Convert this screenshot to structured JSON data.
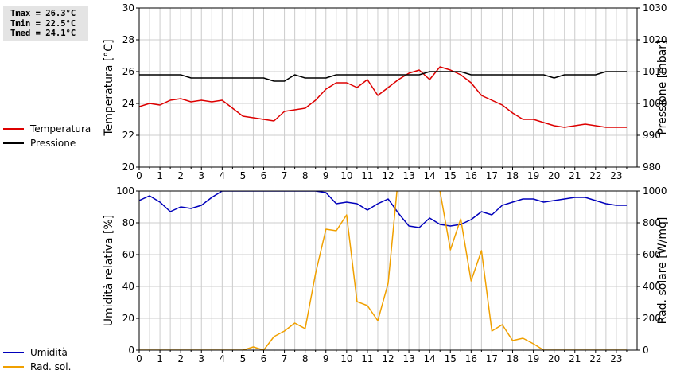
{
  "stats": {
    "tmax": "Tmax = 26.3°C",
    "tmin": "Tmin = 22.5°C",
    "tmed": "Tmed = 24.1°C"
  },
  "colors": {
    "temperature": "#dd0000",
    "pressure": "#000000",
    "humidity": "#0000bb",
    "radiation": "#f0a000",
    "grid": "#cccccc"
  },
  "chart_data": [
    {
      "type": "line",
      "grid": true,
      "legend_position": "left",
      "xlim": [
        0,
        24
      ],
      "x_ticks": [
        "0",
        "1",
        "2",
        "3",
        "4",
        "5",
        "6",
        "7",
        "8",
        "9",
        "10",
        "11",
        "12",
        "13",
        "14",
        "15",
        "16",
        "17",
        "18",
        "19",
        "20",
        "21",
        "22",
        "23"
      ],
      "ylabel": "Temperatura [°C]",
      "ylim": [
        20,
        30
      ],
      "y_ticks": [
        "20",
        "22",
        "24",
        "26",
        "28",
        "30"
      ],
      "y2label": "Pressione [mbar]",
      "y2lim": [
        980,
        1030
      ],
      "y2_ticks": [
        "980",
        "990",
        "1000",
        "1010",
        "1020",
        "1030"
      ],
      "series": [
        {
          "name": "Temperatura",
          "axis": "left",
          "x": [
            0,
            0.5,
            1,
            1.5,
            2,
            2.5,
            3,
            3.5,
            4,
            4.5,
            5,
            5.5,
            6,
            6.5,
            7,
            7.5,
            8,
            8.5,
            9,
            9.5,
            10,
            10.5,
            11,
            11.5,
            12,
            12.5,
            13,
            13.5,
            14,
            14.5,
            15,
            15.5,
            16,
            16.5,
            17,
            17.5,
            18,
            18.5,
            19,
            19.5,
            20,
            20.5,
            21,
            21.5,
            22,
            22.5,
            23,
            23.5
          ],
          "values": [
            23.8,
            24.0,
            23.9,
            24.2,
            24.3,
            24.1,
            24.2,
            24.1,
            24.2,
            23.7,
            23.2,
            23.1,
            23.0,
            22.9,
            23.5,
            23.6,
            23.7,
            24.2,
            24.9,
            25.3,
            25.3,
            25.0,
            25.5,
            24.5,
            25.0,
            25.5,
            25.9,
            26.1,
            25.5,
            26.3,
            26.1,
            25.8,
            25.3,
            24.5,
            24.2,
            23.9,
            23.4,
            23.0,
            23.0,
            22.8,
            22.6,
            22.5,
            22.6,
            22.7,
            22.6,
            22.5,
            22.5,
            22.5
          ]
        },
        {
          "name": "Pressione",
          "axis": "right",
          "x": [
            0,
            0.5,
            1,
            1.5,
            2,
            2.5,
            3,
            3.5,
            4,
            4.5,
            5,
            5.5,
            6,
            6.5,
            7,
            7.5,
            8,
            8.5,
            9,
            9.5,
            10,
            10.5,
            11,
            11.5,
            12,
            12.5,
            13,
            13.5,
            14,
            14.5,
            15,
            15.5,
            16,
            16.5,
            17,
            17.5,
            18,
            18.5,
            19,
            19.5,
            20,
            20.5,
            21,
            21.5,
            22,
            22.5,
            23,
            23.5
          ],
          "values": [
            1009,
            1009,
            1009,
            1009,
            1009,
            1008,
            1008,
            1008,
            1008,
            1008,
            1008,
            1008,
            1008,
            1007,
            1007,
            1009,
            1008,
            1008,
            1008,
            1009,
            1009,
            1009,
            1009,
            1009,
            1009,
            1009,
            1009,
            1009,
            1010,
            1010,
            1010,
            1010,
            1009,
            1009,
            1009,
            1009,
            1009,
            1009,
            1009,
            1009,
            1008,
            1009,
            1009,
            1009,
            1009,
            1010,
            1010,
            1010
          ]
        }
      ]
    },
    {
      "type": "line",
      "grid": true,
      "legend_position": "left",
      "xlim": [
        0,
        24
      ],
      "x_ticks": [
        "0",
        "1",
        "2",
        "3",
        "4",
        "5",
        "6",
        "7",
        "8",
        "9",
        "10",
        "11",
        "12",
        "13",
        "14",
        "15",
        "16",
        "17",
        "18",
        "19",
        "20",
        "21",
        "22",
        "23"
      ],
      "ylabel": "Umidità relativa [%]",
      "ylim": [
        0,
        100
      ],
      "y_ticks": [
        "0",
        "20",
        "40",
        "60",
        "80",
        "100"
      ],
      "y2label": "Rad. solare [W/mq]",
      "y2lim": [
        0,
        1000
      ],
      "y2_ticks": [
        "0",
        "200",
        "400",
        "600",
        "800",
        "1000"
      ],
      "series": [
        {
          "name": "Umidità",
          "axis": "left",
          "x": [
            0,
            0.5,
            1,
            1.5,
            2,
            2.5,
            3,
            3.5,
            4,
            4.5,
            5,
            5.5,
            6,
            6.5,
            7,
            7.5,
            8,
            8.5,
            9,
            9.5,
            10,
            10.5,
            11,
            11.5,
            12,
            12.5,
            13,
            13.5,
            14,
            14.5,
            15,
            15.5,
            16,
            16.5,
            17,
            17.5,
            18,
            18.5,
            19,
            19.5,
            20,
            20.5,
            21,
            21.5,
            22,
            22.5,
            23,
            23.5
          ],
          "values": [
            94,
            97,
            93,
            87,
            90,
            89,
            91,
            96,
            100,
            100,
            100,
            100,
            100,
            100,
            100,
            100,
            100,
            100,
            99,
            92,
            93,
            92,
            88,
            92,
            95,
            86,
            78,
            77,
            83,
            79,
            78,
            79,
            82,
            87,
            85,
            91,
            93,
            95,
            95,
            93,
            94,
            95,
            96,
            96,
            94,
            92,
            91,
            91
          ]
        },
        {
          "name": "Rad. sol.",
          "axis": "right",
          "x": [
            0,
            0.5,
            1,
            1.5,
            2,
            2.5,
            3,
            3.5,
            4,
            4.5,
            5,
            5.5,
            6,
            6.5,
            7,
            7.5,
            8,
            8.5,
            9,
            9.5,
            10,
            10.5,
            11,
            11.5,
            12,
            12.5,
            13,
            13.5,
            14,
            14.5,
            15,
            15.5,
            16,
            16.5,
            17,
            17.5,
            18,
            18.5,
            19,
            19.5,
            20,
            20.5,
            21,
            21.5,
            22,
            22.5,
            23,
            23.5
          ],
          "values": [
            0,
            0,
            0,
            0,
            0,
            0,
            0,
            0,
            0,
            0,
            0,
            20,
            0,
            85,
            120,
            170,
            135,
            480,
            760,
            750,
            850,
            305,
            280,
            185,
            420,
            1100,
            1100,
            1100,
            1100,
            1000,
            630,
            825,
            435,
            625,
            120,
            160,
            60,
            75,
            40,
            0,
            0,
            0,
            0,
            0,
            0,
            0,
            0,
            0
          ]
        }
      ]
    }
  ]
}
